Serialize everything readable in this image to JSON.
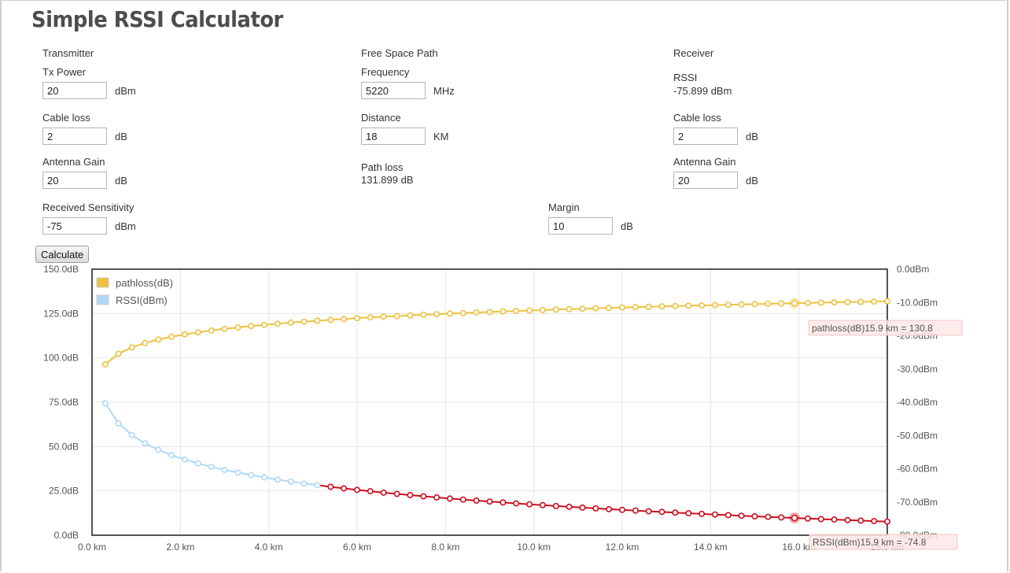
{
  "app": {
    "title": "Simple RSSI Calculator"
  },
  "transmitter": {
    "section_label": "Transmitter",
    "tx_power": {
      "label": "Tx Power",
      "value": "20",
      "unit": "dBm"
    },
    "cable_loss": {
      "label": "Cable loss",
      "value": "2",
      "unit": "dB"
    },
    "antenna_gain": {
      "label": "Antenna Gain",
      "value": "20",
      "unit": "dB"
    },
    "received_sensitivity": {
      "label": "Received Sensitivity",
      "value": "-75",
      "unit": "dBm"
    }
  },
  "free_space_path": {
    "section_label": "Free Space Path",
    "frequency": {
      "label": "Frequency",
      "value": "5220",
      "unit": "MHz"
    },
    "distance": {
      "label": "Distance",
      "value": "18",
      "unit": "KM"
    },
    "path_loss": {
      "label": "Path loss",
      "value": "131.899 dB"
    }
  },
  "receiver": {
    "section_label": "Receiver",
    "rssi": {
      "label": "RSSI",
      "value": "-75.899 dBm"
    },
    "cable_loss": {
      "label": "Cable loss",
      "value": "2",
      "unit": "dB"
    },
    "antenna_gain": {
      "label": "Antenna Gain",
      "value": "20",
      "unit": "dB"
    }
  },
  "margin": {
    "label": "Margin",
    "value": "10",
    "unit": "dB"
  },
  "calculate_label": "Calculate",
  "chart_data": {
    "type": "line",
    "x_unit": "km",
    "xlim": [
      0,
      18
    ],
    "x_ticks": [
      "0.0 km",
      "2.0 km",
      "4.0 km",
      "6.0 km",
      "8.0 km",
      "10.0 km",
      "12.0 km",
      "14.0 km",
      "16.0 km",
      "18.0 km"
    ],
    "y_left": {
      "lim": [
        0,
        150
      ],
      "ticks": [
        "0.0dB",
        "25.0dB",
        "50.0dB",
        "75.0dB",
        "100.0dB",
        "125.0dB",
        "150.0dB"
      ]
    },
    "y_right": {
      "lim": [
        -80,
        0
      ],
      "ticks": [
        "-80.0dBm",
        "-70.0dBm",
        "-60.0dBm",
        "-50.0dBm",
        "-40.0dBm",
        "-30.0dBm",
        "-20.0dBm",
        "-10.0dBm",
        "0.0dBm"
      ]
    },
    "grid": true,
    "legend_position": "top-left",
    "x_step": 0.3,
    "series": [
      {
        "name": "pathloss(dB)",
        "axis": "left",
        "color": "#edc240",
        "x_start": 0.3,
        "x_end": 18.0,
        "formula": "32.44 + 20*log10(5220) + 20*log10(d_km)"
      },
      {
        "name": "RSSI(dBm)",
        "axis": "right",
        "color": "#afd8f8",
        "below_threshold_color": "#cb0f1f",
        "threshold_dBm": -65,
        "x_start": 0.3,
        "x_end": 18.0,
        "formula": "20 - 2 + 20 - pathloss + 20 - 2"
      }
    ],
    "tooltips": [
      {
        "series": "pathloss(dB)",
        "x": 15.9,
        "y": 130.8,
        "text": "pathloss(dB)15.9 km = 130.8"
      },
      {
        "series": "RSSI(dBm)",
        "x": 15.9,
        "y": -74.8,
        "text": "RSSI(dBm)15.9 km = -74.8"
      }
    ]
  }
}
